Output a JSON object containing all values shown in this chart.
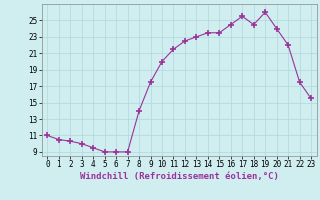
{
  "x": [
    0,
    1,
    2,
    3,
    4,
    5,
    6,
    7,
    8,
    9,
    10,
    11,
    12,
    13,
    14,
    15,
    16,
    17,
    18,
    19,
    20,
    21,
    22,
    23
  ],
  "y": [
    11,
    10.5,
    10.3,
    10.0,
    9.5,
    9.0,
    9.0,
    9.0,
    14.0,
    17.5,
    20.0,
    21.5,
    22.5,
    23.0,
    23.5,
    23.5,
    24.5,
    25.5,
    24.5,
    26.0,
    24.0,
    22.0,
    17.5,
    15.5
  ],
  "line_color": "#993399",
  "marker": "+",
  "marker_size": 4,
  "marker_lw": 1.2,
  "xlabel": "Windchill (Refroidissement éolien,°C)",
  "xlim": [
    -0.5,
    23.5
  ],
  "ylim": [
    8.5,
    27
  ],
  "yticks": [
    9,
    11,
    13,
    15,
    17,
    19,
    21,
    23,
    25
  ],
  "xticks": [
    0,
    1,
    2,
    3,
    4,
    5,
    6,
    7,
    8,
    9,
    10,
    11,
    12,
    13,
    14,
    15,
    16,
    17,
    18,
    19,
    20,
    21,
    22,
    23
  ],
  "background_color": "#d0eef0",
  "grid_color": "#b0d8dc",
  "tick_fontsize": 5.5,
  "xlabel_fontsize": 6.5,
  "linewidth": 0.8
}
